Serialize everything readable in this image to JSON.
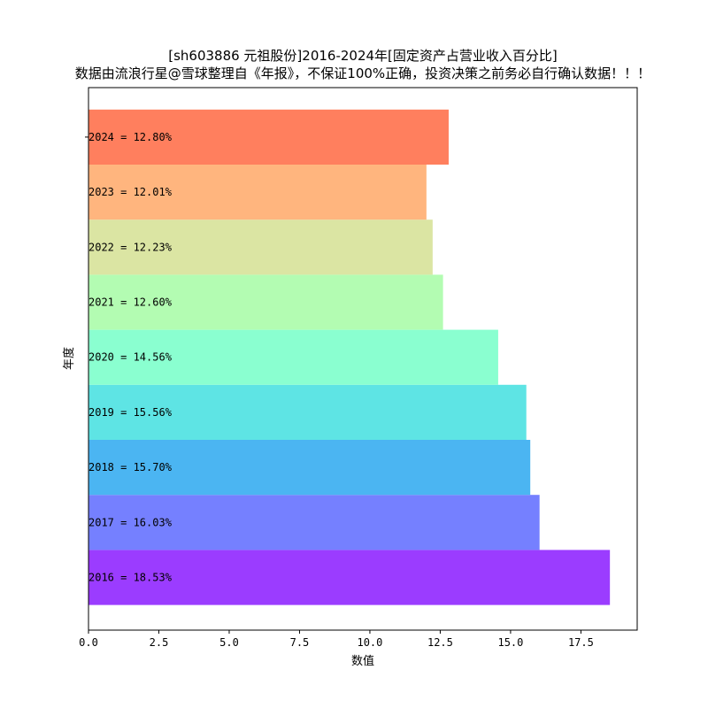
{
  "chart_data": {
    "type": "bar",
    "orientation": "horizontal",
    "title": "[sh603886 元祖股份]2016-2024年[固定资产占营业收入百分比]",
    "subtitle": "数据由流浪行星@雪球整理自《年报》，不保证100%正确，投资决策之前务必自行确认数据！！！",
    "xlabel": "数值",
    "ylabel": "年度",
    "xlim": [
      0,
      19.5
    ],
    "xticks": [
      0.0,
      2.5,
      5.0,
      7.5,
      10.0,
      12.5,
      15.0,
      17.5
    ],
    "xtick_labels": [
      "0.0",
      "2.5",
      "5.0",
      "7.5",
      "10.0",
      "12.5",
      "15.0",
      "17.5"
    ],
    "grid": false,
    "categories": [
      "2016",
      "2017",
      "2018",
      "2019",
      "2020",
      "2021",
      "2022",
      "2023",
      "2024"
    ],
    "values": [
      18.53,
      16.03,
      15.7,
      15.56,
      14.56,
      12.6,
      12.23,
      12.01,
      12.8
    ],
    "bar_labels": [
      "2016 = 18.53%",
      "2017 = 16.03%",
      "2018 = 15.70%",
      "2019 = 15.56%",
      "2020 = 14.56%",
      "2021 = 12.60%",
      "2022 = 12.23%",
      "2023 = 12.01%",
      "2024 = 12.80%"
    ],
    "colors": [
      "#9b3cff",
      "#7580ff",
      "#4bb5f2",
      "#5ee4e4",
      "#8affd0",
      "#b3fcb2",
      "#dbe5a3",
      "#ffb57e",
      "#ff7f5e"
    ]
  }
}
